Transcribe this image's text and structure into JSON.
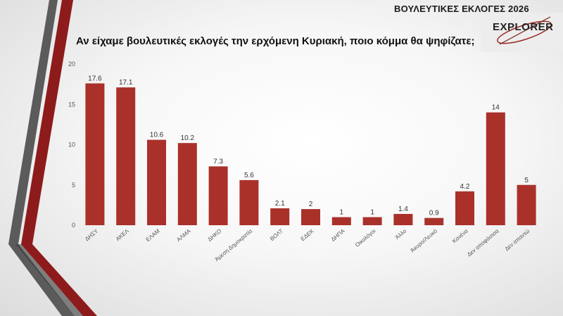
{
  "header": {
    "title": "ΒΟΥΛΕΥΤΙΚΕΣ ΕΚΛΟΓΕΣ 2026"
  },
  "logo": {
    "text": "EXPLORER"
  },
  "chart_data": {
    "type": "bar",
    "title": "Αν είχαμε βουλευτικές εκλογές την ερχόμενη Κυριακή, ποιο κόμμα θα ψηφίζατε;",
    "categories": [
      "ΔΗΣΥ",
      "ΑΚΕΛ",
      "ΕΛΑΜ",
      "ΑΛΜΑ",
      "ΔΗΚΟ",
      "Άμεση Δημοκρατία",
      "ΒΟΛΤ",
      "ΕΔΕΚ",
      "ΔΗΠΑ",
      "Οικολόγοι",
      "Άλλο",
      "Άκυρο/Λευκό",
      "Κανένα",
      "Δεν αποφάσισα",
      "Δεν απαντώ"
    ],
    "values": [
      17.6,
      17.1,
      10.6,
      10.2,
      7.3,
      5.6,
      2.1,
      2,
      1,
      1,
      1.4,
      0.9,
      4.2,
      14,
      5
    ],
    "data_labels": [
      "17.6",
      "17.1",
      "10.6",
      "10.2",
      "7.3",
      "5.6",
      "2.1",
      "2",
      "1",
      "1",
      "1.4",
      "0.9",
      "4.2",
      "14",
      "5"
    ],
    "ylim": [
      0,
      20
    ],
    "yticks": [
      "0",
      "5",
      "10",
      "15",
      "20"
    ],
    "ytick_values": [
      0,
      5,
      10,
      15,
      20
    ],
    "grid": false,
    "legend": "none",
    "bar_color": "#a9312a"
  },
  "colors": {
    "bar": "#a9312a",
    "stripe_dark": "#8e1b1b",
    "stripe_gray": "#5a5a5a"
  }
}
